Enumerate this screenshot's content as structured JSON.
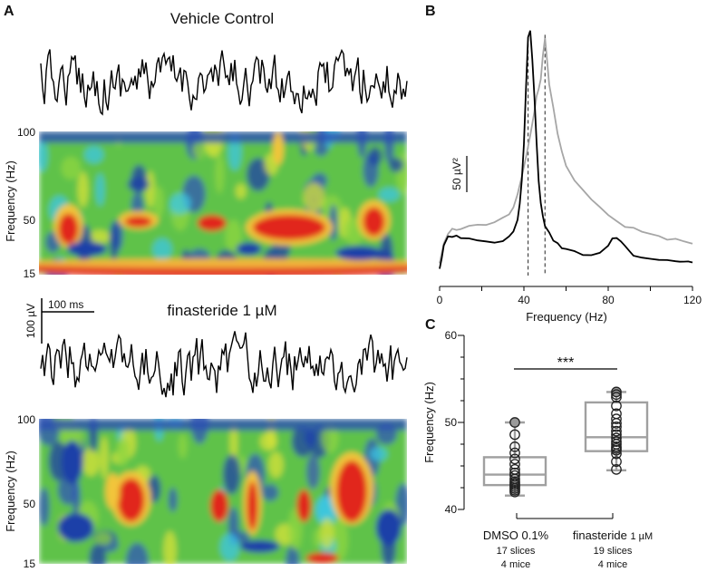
{
  "panels": {
    "a": {
      "letter": "A",
      "top_title": "Vehicle Control",
      "bottom_title": "finasteride 1 µM",
      "spec_ylabel": "Frequency (Hz)",
      "spec_yticks": [
        "100",
        "50",
        "15"
      ],
      "scalebar_v": "100 µV",
      "scalebar_h": "100 ms"
    },
    "b": {
      "letter": "B",
      "scalebar": "50 µV²",
      "xlabel": "Frequency (Hz)"
    },
    "c": {
      "letter": "C",
      "ylabel": "Frequency (Hz)",
      "significance": "***",
      "groups": [
        {
          "name": "DMSO 0.1%",
          "unit": "",
          "slices": "17 slices",
          "mice": "4 mice"
        },
        {
          "name": "finasteride",
          "unit": "1 µM",
          "slices": "19 slices",
          "mice": "4 mice"
        }
      ]
    }
  },
  "chart_data": [
    {
      "type": "heatmap",
      "panel": "A-top",
      "title": "Vehicle Control",
      "ylabel": "Frequency (Hz)",
      "ylim": [
        15,
        100
      ],
      "yticks": [
        100,
        50,
        15
      ],
      "note": "wavelet spectrogram of the field trace above; red bands near 45-55 Hz and low-frequency band near 15-20 Hz"
    },
    {
      "type": "heatmap",
      "panel": "A-bottom",
      "title": "finasteride 1 µM",
      "ylabel": "Frequency (Hz)",
      "ylim": [
        15,
        100
      ],
      "yticks": [
        100,
        50,
        15
      ],
      "note": "wavelet spectrogram; red bursts centred near 50-60 Hz"
    },
    {
      "type": "line",
      "panel": "B",
      "xlabel": "Frequency (Hz)",
      "xlim": [
        0,
        120
      ],
      "xticks": [
        0,
        40,
        80,
        120
      ],
      "ylim": [
        0,
        280
      ],
      "dashed_x": [
        42,
        50
      ],
      "series": [
        {
          "name": "Vehicle Control",
          "color": "#000000",
          "x": [
            0,
            1,
            2,
            4,
            6,
            8,
            10,
            14,
            18,
            22,
            26,
            30,
            33,
            35,
            37,
            38,
            39,
            40,
            41,
            42,
            43,
            44,
            45,
            46,
            47,
            48,
            49,
            50,
            52,
            54,
            56,
            58,
            60,
            64,
            68,
            72,
            76,
            80,
            82,
            84,
            86,
            88,
            90,
            92,
            96,
            100,
            104,
            108,
            112,
            114,
            116,
            118,
            120
          ],
          "y": [
            2,
            15,
            30,
            40,
            37,
            39,
            36,
            36,
            34,
            34,
            32,
            34,
            38,
            45,
            58,
            75,
            100,
            140,
            200,
            255,
            262,
            230,
            190,
            140,
            100,
            75,
            60,
            50,
            42,
            35,
            30,
            26,
            24,
            22,
            19,
            18,
            20,
            30,
            35,
            37,
            33,
            27,
            22,
            18,
            15,
            13,
            12,
            12,
            11,
            11,
            10,
            10,
            10
          ]
        },
        {
          "name": "finasteride 1 µM",
          "color": "#a6a6a6",
          "x": [
            0,
            2,
            4,
            6,
            8,
            10,
            14,
            18,
            22,
            26,
            30,
            33,
            35,
            37,
            39,
            41,
            43,
            45,
            46,
            47,
            48,
            49,
            50,
            51,
            52,
            54,
            56,
            58,
            60,
            64,
            68,
            72,
            76,
            80,
            84,
            88,
            92,
            96,
            100,
            104,
            108,
            112,
            116,
            120
          ],
          "y": [
            8,
            30,
            42,
            48,
            45,
            47,
            50,
            52,
            52,
            54,
            58,
            62,
            70,
            85,
            105,
            125,
            150,
            175,
            190,
            200,
            210,
            235,
            255,
            230,
            205,
            180,
            150,
            130,
            115,
            100,
            88,
            78,
            70,
            62,
            55,
            50,
            48,
            45,
            40,
            38,
            36,
            35,
            33,
            30
          ]
        }
      ]
    },
    {
      "type": "box",
      "panel": "C",
      "ylabel": "Frequency (Hz)",
      "ylim": [
        40,
        60
      ],
      "yticks": [
        40,
        50,
        60
      ],
      "categories": [
        "DMSO 0.1%",
        "finasteride 1 µM"
      ],
      "boxes": [
        {
          "min": 41.6,
          "q1": 42.8,
          "median": 44.0,
          "q3": 46.0,
          "max": 50.0,
          "points": [
            50.0,
            48.6,
            47.2,
            46.5,
            45.8,
            45.2,
            44.6,
            44.2,
            43.9,
            43.5,
            43.2,
            43.0,
            42.8,
            42.6,
            42.4,
            42.2,
            42.0
          ]
        },
        {
          "min": 44.5,
          "q1": 46.7,
          "median": 48.3,
          "q3": 52.3,
          "max": 53.5,
          "points": [
            53.5,
            53.2,
            52.9,
            51.9,
            51.0,
            50.4,
            49.9,
            49.5,
            49.0,
            48.6,
            48.2,
            47.8,
            47.5,
            47.2,
            47.0,
            46.8,
            46.4,
            45.5,
            44.6
          ]
        }
      ],
      "significance": "***"
    }
  ]
}
